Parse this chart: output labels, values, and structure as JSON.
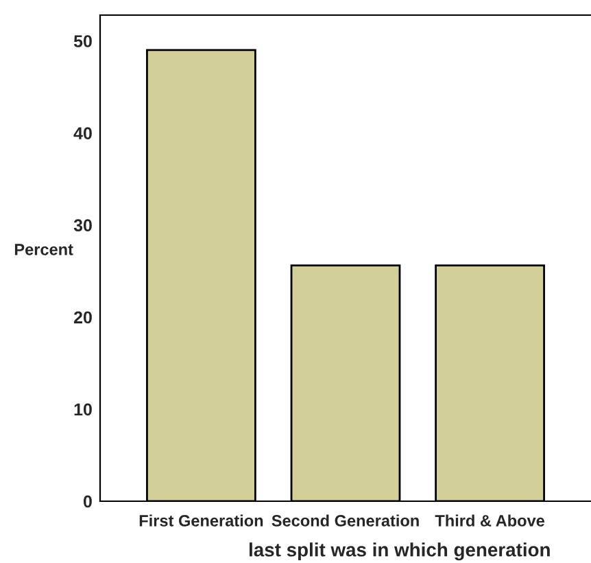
{
  "chart_data": {
    "type": "bar",
    "categories": [
      "First Generation",
      "Second Generation",
      "Third & Above"
    ],
    "values": [
      49,
      25.6,
      25.6
    ],
    "color": "#d3cf99",
    "xlabel": "last split was in which generation",
    "ylabel": "Percent",
    "ylim": [
      0,
      52.8
    ],
    "yticks": [
      0,
      10,
      20,
      30,
      40,
      50
    ],
    "grid": false
  }
}
